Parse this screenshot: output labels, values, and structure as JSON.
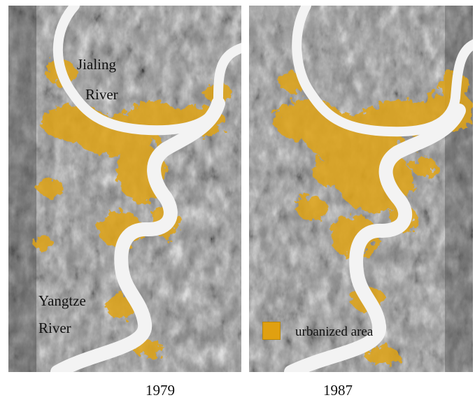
{
  "panels": [
    {
      "year": "1979",
      "rivers": [
        {
          "name_line1": "Jialing",
          "name_line2": "River"
        },
        {
          "name_line1": "Yangtze",
          "name_line2": "River"
        }
      ]
    },
    {
      "year": "1987"
    }
  ],
  "legend": {
    "label": "urbanized area",
    "color": "#e0a010"
  },
  "colors": {
    "urban": "#e0a418",
    "water": "#f3f3f3",
    "terrain_dark": "#4a4a4a",
    "terrain_light": "#b9b9b9"
  }
}
